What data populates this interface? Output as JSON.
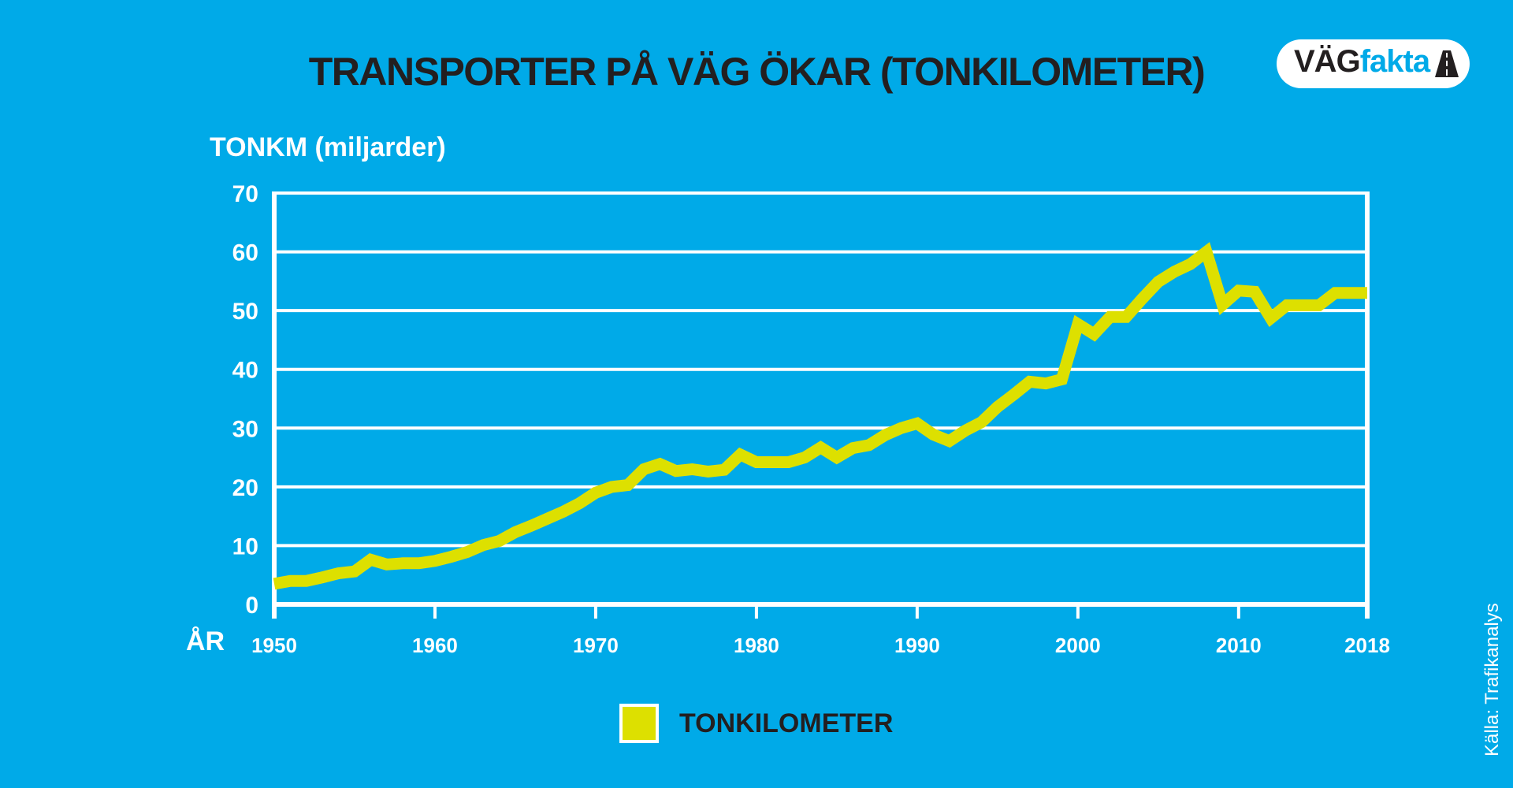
{
  "header": {
    "title": "TRANSPORTER PÅ VÄG ÖKAR  (TONKILOMETER)",
    "logo_text_a": "VÄG",
    "logo_text_b": "fakta"
  },
  "source": "Källa: Trafikanalys",
  "colors": {
    "background": "#00aae8",
    "line": "#dde000",
    "grid": "#ffffff",
    "title_text": "#231f20"
  },
  "chart_data": {
    "type": "line",
    "title": "TRANSPORTER PÅ VÄG ÖKAR  (TONKILOMETER)",
    "ylabel": "TONKM (miljarder)",
    "xlabel": "ÅR",
    "ylim": [
      0,
      70
    ],
    "xlim": [
      1950,
      2018
    ],
    "yticks": [
      0,
      10,
      20,
      30,
      40,
      50,
      60,
      70
    ],
    "xticks": [
      "1950",
      "1960",
      "1970",
      "1980",
      "1990",
      "2000",
      "2010",
      "2018"
    ],
    "grid": "horizontal",
    "legend_position": "bottom-center",
    "series": [
      {
        "name": "TONKILOMETER",
        "x": [
          1950,
          1951,
          1952,
          1953,
          1954,
          1955,
          1956,
          1957,
          1958,
          1959,
          1960,
          1961,
          1962,
          1963,
          1964,
          1965,
          1966,
          1967,
          1968,
          1969,
          1970,
          1971,
          1972,
          1973,
          1974,
          1975,
          1976,
          1977,
          1978,
          1979,
          1980,
          1981,
          1982,
          1983,
          1984,
          1985,
          1986,
          1987,
          1988,
          1989,
          1990,
          1991,
          1992,
          1993,
          1994,
          1995,
          1996,
          1997,
          1998,
          1999,
          2000,
          2001,
          2002,
          2003,
          2004,
          2005,
          2006,
          2007,
          2008,
          2009,
          2010,
          2011,
          2012,
          2013,
          2014,
          2015,
          2016,
          2017,
          2018
        ],
        "values": [
          3.5,
          4.0,
          4.0,
          4.6,
          5.3,
          5.6,
          7.6,
          6.8,
          7.0,
          7.0,
          7.4,
          8.1,
          8.9,
          10.1,
          10.8,
          12.3,
          13.4,
          14.6,
          15.8,
          17.2,
          19.0,
          20.0,
          20.3,
          23.0,
          23.9,
          22.7,
          23.0,
          22.6,
          22.9,
          25.5,
          24.2,
          24.2,
          24.2,
          25.0,
          26.7,
          25.0,
          26.6,
          27.1,
          28.8,
          30.0,
          30.8,
          28.9,
          27.8,
          29.6,
          31.0,
          33.6,
          35.7,
          37.9,
          37.6,
          38.3,
          47.7,
          46.0,
          48.9,
          48.9,
          52.0,
          54.9,
          56.6,
          57.9,
          60.0,
          51.0,
          53.4,
          53.2,
          48.7,
          50.9,
          50.9,
          50.9,
          53.0,
          53.0,
          53.0
        ]
      }
    ]
  }
}
